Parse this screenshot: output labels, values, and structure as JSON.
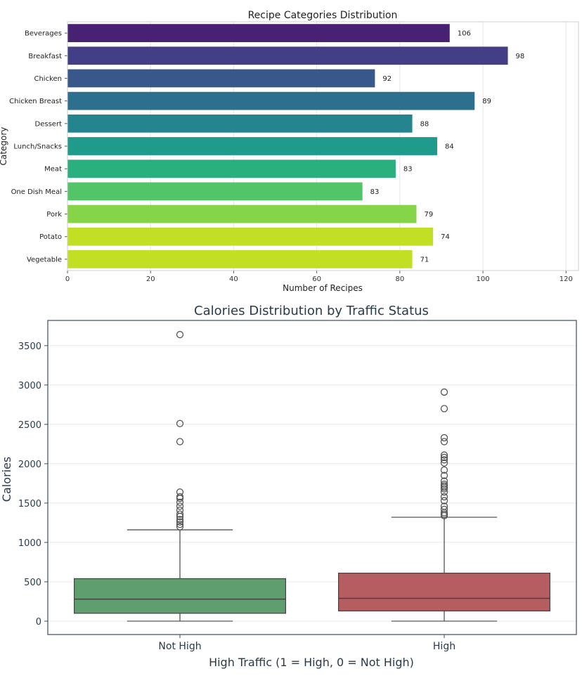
{
  "chart_data": [
    {
      "type": "bar",
      "orientation": "horizontal",
      "title": "Recipe Categories Distribution",
      "xlabel": "Number of Recipes",
      "ylabel": "Category",
      "xlim": [
        0,
        123
      ],
      "xticks": [
        0,
        20,
        40,
        60,
        80,
        100,
        120
      ],
      "grid": "x",
      "categories": [
        "Beverages",
        "Breakfast",
        "Chicken",
        "Chicken Breast",
        "Dessert",
        "Lunch/Snacks",
        "Meat",
        "One Dish Meal",
        "Pork",
        "Potato",
        "Vegetable"
      ],
      "values": [
        92,
        106,
        74,
        98,
        83,
        89,
        79,
        71,
        84,
        88,
        83
      ],
      "data_labels": [
        "106",
        "98",
        "92",
        "89",
        "88",
        "84",
        "83",
        "83",
        "79",
        "74",
        "71"
      ],
      "colors": [
        "#482173",
        "#433e85",
        "#38588c",
        "#2d708e",
        "#25858e",
        "#1e9b8a",
        "#2ab07f",
        "#52c569",
        "#86d549",
        "#c2df23",
        "#c2df23"
      ]
    },
    {
      "type": "box",
      "title": "Calories Distribution by Traffic Status",
      "xlabel": "High Traffic (1 = High, 0 = Not High)",
      "ylabel": "Calories",
      "ylim": [
        -170,
        3820
      ],
      "yticks": [
        0,
        500,
        1000,
        1500,
        2000,
        2500,
        3000,
        3500
      ],
      "grid": "y",
      "categories": [
        "Not High",
        "High"
      ],
      "boxes": [
        {
          "category": "Not High",
          "color": "#5f9e6e",
          "whisker_low": 0,
          "q1": 100,
          "median": 280,
          "q3": 540,
          "whisker_high": 1160,
          "outliers": [
            1200,
            1230,
            1260,
            1290,
            1330,
            1360,
            1410,
            1460,
            1510,
            1560,
            1580,
            1640,
            2280,
            2510,
            3640
          ]
        },
        {
          "category": "High",
          "color": "#b55d60",
          "whisker_low": 0,
          "q1": 130,
          "median": 290,
          "q3": 610,
          "whisker_high": 1320,
          "outliers": [
            1340,
            1360,
            1380,
            1420,
            1460,
            1530,
            1580,
            1640,
            1680,
            1700,
            1720,
            1740,
            1780,
            1850,
            1920,
            2010,
            2050,
            2080,
            2110,
            2280,
            2330,
            2700,
            2910
          ]
        }
      ]
    }
  ]
}
